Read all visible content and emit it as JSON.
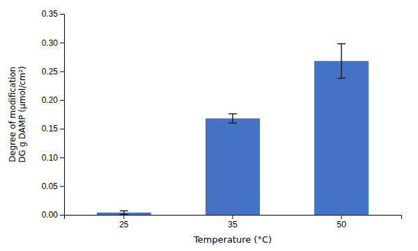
{
  "chart_data": {
    "type": "bar",
    "categories": [
      "25",
      "35",
      "50"
    ],
    "values": [
      0.004,
      0.168,
      0.268
    ],
    "errors": [
      0.003,
      0.008,
      0.03
    ],
    "color": "#4472C4",
    "xlabel": "Temperature (°C)",
    "ylabel": "Degree of modification\nDG g DAMP (μmol/cm²)",
    "ylim": [
      0,
      0.35
    ],
    "yticks": [
      {
        "value": 0,
        "label": "0.00"
      },
      0.05,
      {
        "value": 0.1,
        "label": "0.10"
      },
      0.15,
      {
        "value": 0.2,
        "label": "0.20"
      },
      0.25,
      {
        "value": 0.3,
        "label": "0.30"
      },
      0.35
    ],
    "grid": false
  }
}
